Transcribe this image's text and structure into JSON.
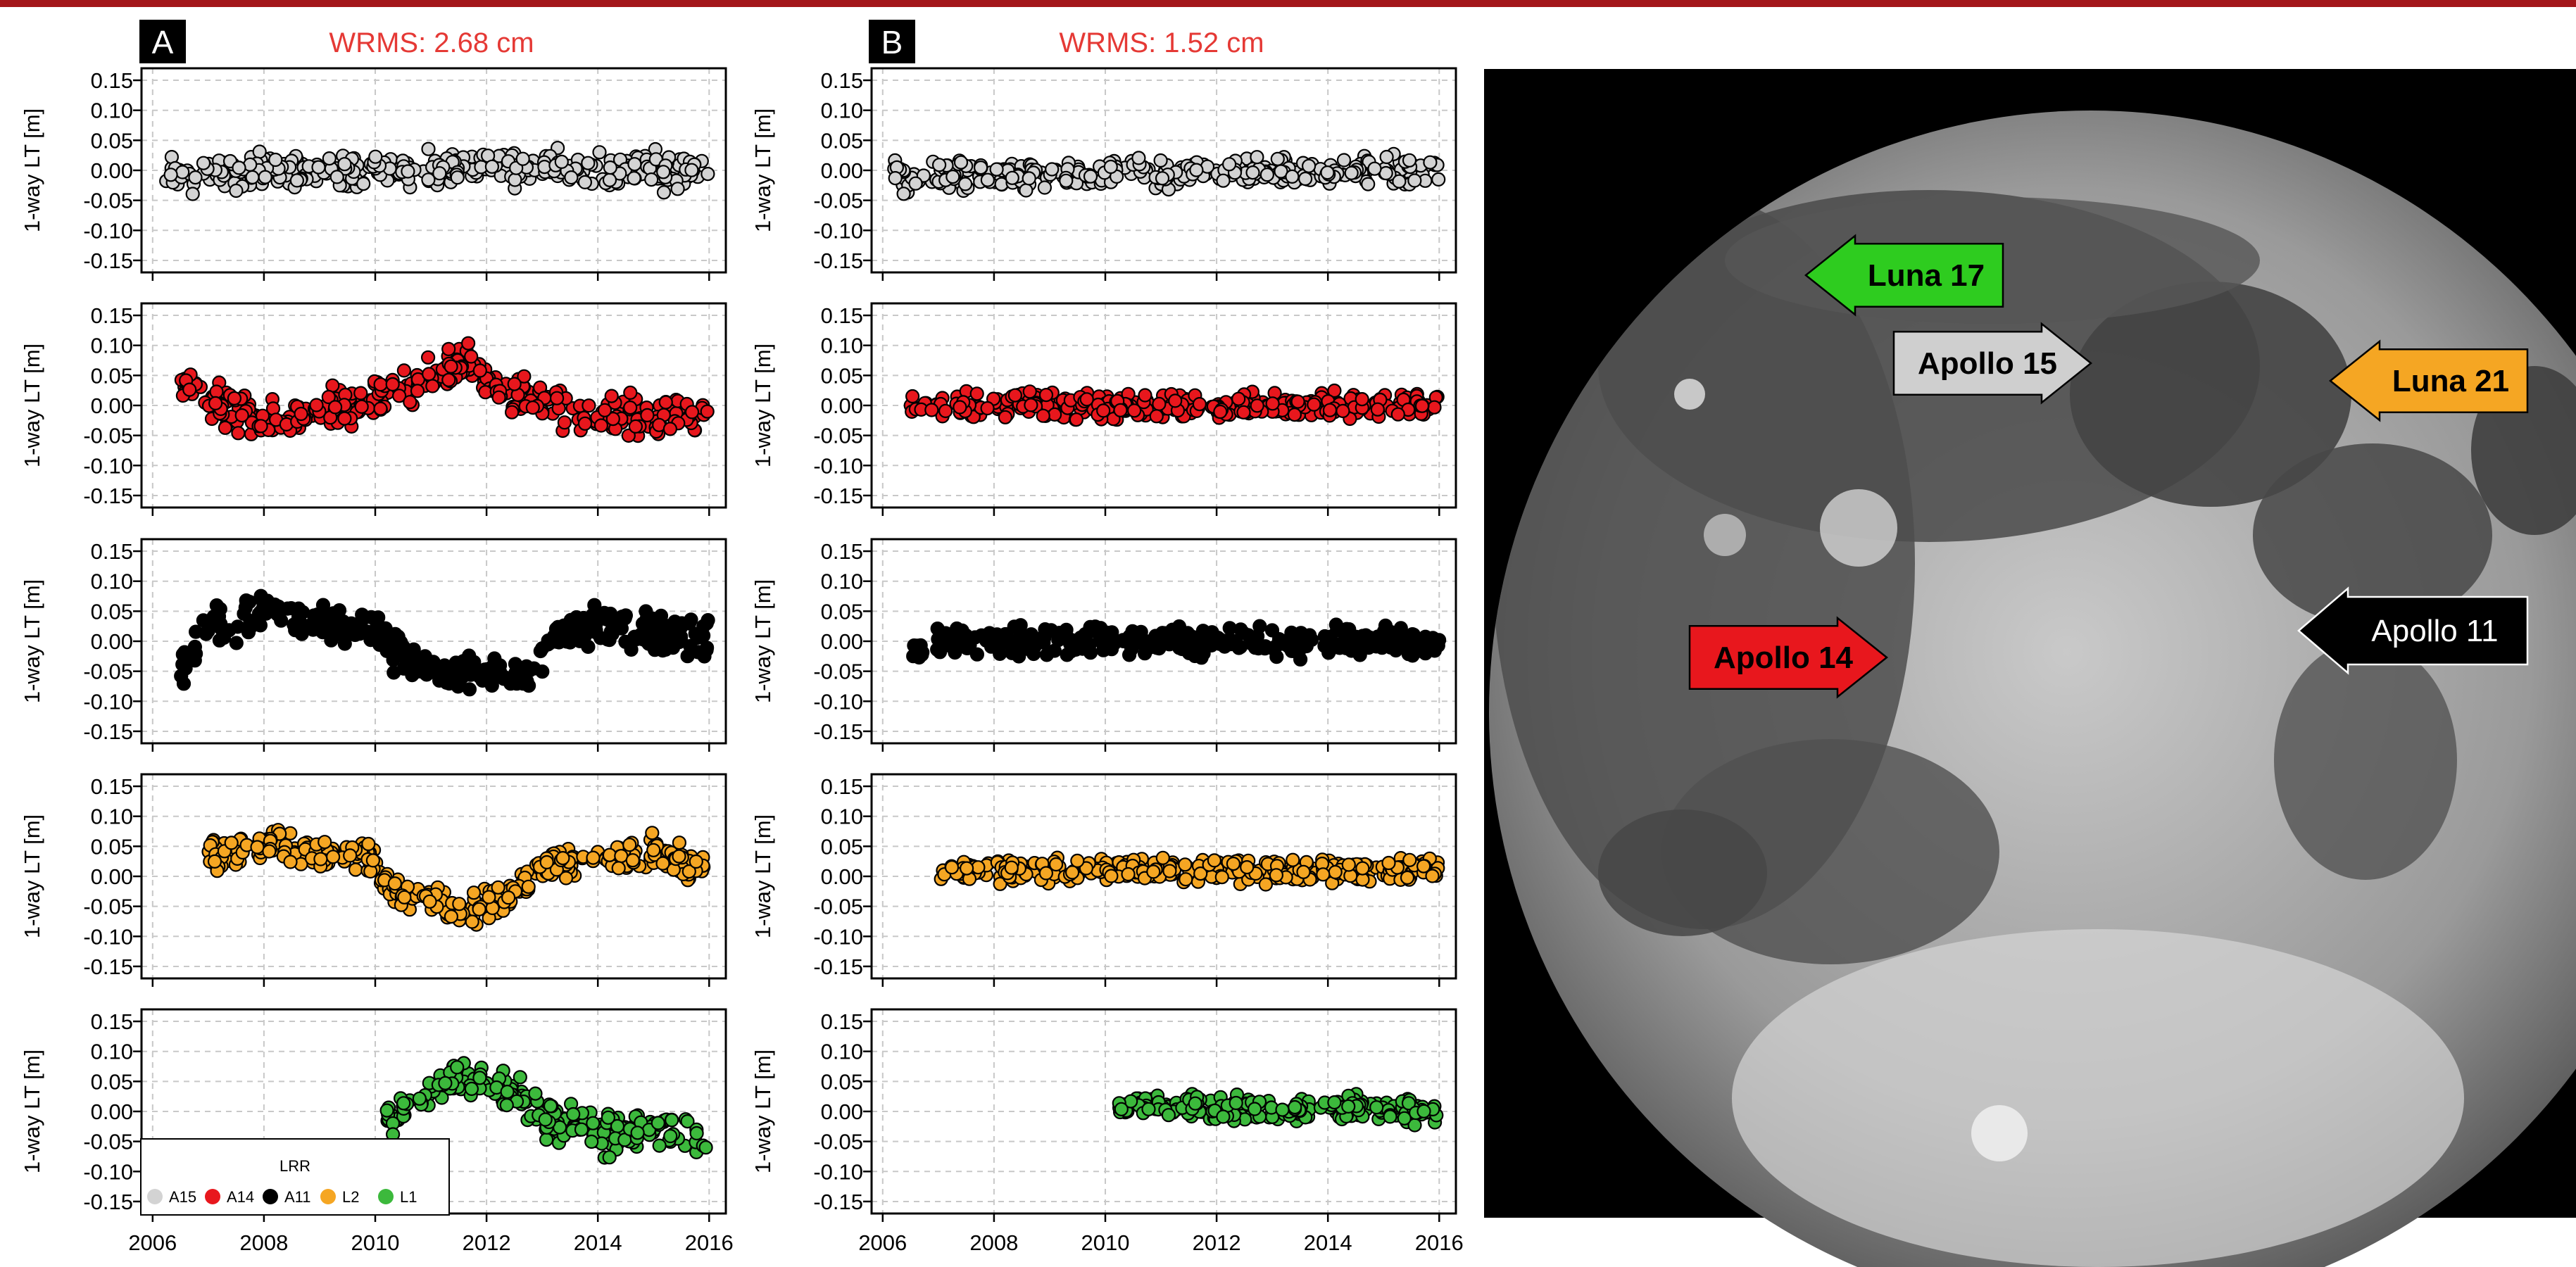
{
  "chart_data": [
    {
      "type": "scatter",
      "panel": "A",
      "annotation": "WRMS: 2.68 cm",
      "ylabel": "1-way LT [m]",
      "ylim": [
        -0.17,
        0.17
      ],
      "yticks": [
        "0.15",
        "0.10",
        "0.05",
        "0.00",
        "-0.05",
        "-0.10",
        "-0.15"
      ],
      "xlim": [
        2005.8,
        2016.3
      ],
      "xticks": [
        "2006",
        "2008",
        "2010",
        "2012",
        "2014",
        "2016"
      ],
      "grid": true,
      "legend": {
        "title": "LRR",
        "placement": "bottom-left",
        "entries": [
          {
            "label": "A15",
            "color": "#d3d3d3"
          },
          {
            "label": "A14",
            "color": "#e8171d"
          },
          {
            "label": "A11",
            "color": "#000000"
          },
          {
            "label": "L2",
            "color": "#f5a623"
          },
          {
            "label": "L1",
            "color": "#3cb93c"
          }
        ]
      },
      "series": [
        {
          "name": "A15",
          "color": "#d3d3d3",
          "x_range": [
            2006.2,
            2016.0
          ],
          "trend": [
            [
              2006.3,
              -0.01
            ],
            [
              2008.0,
              0.0
            ],
            [
              2010.0,
              0.0
            ],
            [
              2011.0,
              0.005
            ],
            [
              2012.0,
              0.01
            ],
            [
              2013.0,
              0.0
            ],
            [
              2014.0,
              0.0
            ],
            [
              2016.0,
              0.0
            ]
          ],
          "spread": 0.03
        },
        {
          "name": "A14",
          "color": "#e8171d",
          "x_range": [
            2006.5,
            2016.0
          ],
          "trend": [
            [
              2006.5,
              0.04
            ],
            [
              2007.2,
              0.0
            ],
            [
              2008.0,
              -0.03
            ],
            [
              2009.0,
              -0.01
            ],
            [
              2010.0,
              0.01
            ],
            [
              2011.0,
              0.05
            ],
            [
              2011.5,
              0.07
            ],
            [
              2012.0,
              0.04
            ],
            [
              2013.0,
              0.0
            ],
            [
              2014.0,
              -0.02
            ],
            [
              2016.0,
              -0.02
            ]
          ],
          "spread": 0.035
        },
        {
          "name": "A11",
          "color": "#000000",
          "x_range": [
            2006.5,
            2016.0
          ],
          "trend": [
            [
              2006.5,
              -0.04
            ],
            [
              2007.0,
              0.02
            ],
            [
              2008.0,
              0.05
            ],
            [
              2009.0,
              0.03
            ],
            [
              2010.0,
              0.02
            ],
            [
              2010.5,
              -0.03
            ],
            [
              2011.0,
              -0.05
            ],
            [
              2012.0,
              -0.06
            ],
            [
              2012.8,
              -0.04
            ],
            [
              2013.2,
              0.01
            ],
            [
              2014.0,
              0.03
            ],
            [
              2015.0,
              0.01
            ],
            [
              2016.0,
              0.01
            ]
          ],
          "spread": 0.035
        },
        {
          "name": "L2",
          "color": "#f5a623",
          "x_range": [
            2007.0,
            2016.0
          ],
          "trend": [
            [
              2007.0,
              0.04
            ],
            [
              2008.3,
              0.05
            ],
            [
              2009.0,
              0.03
            ],
            [
              2009.8,
              0.04
            ],
            [
              2010.3,
              -0.02
            ],
            [
              2011.0,
              -0.04
            ],
            [
              2011.6,
              -0.07
            ],
            [
              2012.2,
              -0.04
            ],
            [
              2012.6,
              -0.02
            ],
            [
              2013.0,
              0.02
            ],
            [
              2014.0,
              0.03
            ],
            [
              2015.0,
              0.04
            ],
            [
              2016.0,
              0.01
            ]
          ],
          "spread": 0.03
        },
        {
          "name": "L1",
          "color": "#3cb93c",
          "x_range": [
            2010.2,
            2016.0
          ],
          "trend": [
            [
              2010.2,
              -0.01
            ],
            [
              2010.8,
              0.02
            ],
            [
              2011.5,
              0.05
            ],
            [
              2012.0,
              0.06
            ],
            [
              2012.5,
              0.03
            ],
            [
              2013.0,
              -0.01
            ],
            [
              2014.0,
              -0.04
            ],
            [
              2015.0,
              -0.03
            ],
            [
              2016.0,
              -0.04
            ]
          ],
          "spread": 0.035
        }
      ]
    },
    {
      "type": "scatter",
      "panel": "B",
      "annotation": "WRMS: 1.52 cm",
      "ylabel": "1-way LT [m]",
      "ylim": [
        -0.17,
        0.17
      ],
      "yticks": [
        "0.15",
        "0.10",
        "0.05",
        "0.00",
        "-0.05",
        "-0.10",
        "-0.15"
      ],
      "xlim": [
        2005.8,
        2016.3
      ],
      "xticks": [
        "2006",
        "2008",
        "2010",
        "2012",
        "2014",
        "2016"
      ],
      "grid": true,
      "series": [
        {
          "name": "A15",
          "color": "#d3d3d3",
          "x_range": [
            2006.2,
            2016.0
          ],
          "trend": [
            [
              2006.2,
              -0.01
            ],
            [
              2016.0,
              0.0
            ]
          ],
          "spread": 0.025
        },
        {
          "name": "A14",
          "color": "#e8171d",
          "x_range": [
            2006.5,
            2016.0
          ],
          "trend": [
            [
              2006.5,
              0.0
            ],
            [
              2016.0,
              0.0
            ]
          ],
          "spread": 0.022
        },
        {
          "name": "A11",
          "color": "#000000",
          "x_range": [
            2006.5,
            2016.0
          ],
          "trend": [
            [
              2006.5,
              -0.02
            ],
            [
              2007.0,
              0.0
            ],
            [
              2016.0,
              0.0
            ]
          ],
          "spread": 0.025
        },
        {
          "name": "L2",
          "color": "#f5a623",
          "x_range": [
            2007.0,
            2016.0
          ],
          "trend": [
            [
              2007.0,
              0.01
            ],
            [
              2016.0,
              0.01
            ]
          ],
          "spread": 0.02
        },
        {
          "name": "L1",
          "color": "#3cb93c",
          "x_range": [
            2010.2,
            2016.0
          ],
          "trend": [
            [
              2010.2,
              0.01
            ],
            [
              2016.0,
              0.0
            ]
          ],
          "spread": 0.022
        }
      ]
    }
  ],
  "moon_map": {
    "labels": [
      {
        "text": "Luna 17",
        "color": "#2ecc1f",
        "text_color": "#000000",
        "direction": "left"
      },
      {
        "text": "Apollo 15",
        "color": "#cfcfcf",
        "text_color": "#000000",
        "direction": "right"
      },
      {
        "text": "Luna 21",
        "color": "#f5a623",
        "text_color": "#000000",
        "direction": "left"
      },
      {
        "text": "Apollo 14",
        "color": "#e8171d",
        "text_color": "#000000",
        "direction": "right"
      },
      {
        "text": "Apollo 11",
        "color": "#000000",
        "text_color": "#ffffff",
        "direction": "left"
      }
    ]
  }
}
